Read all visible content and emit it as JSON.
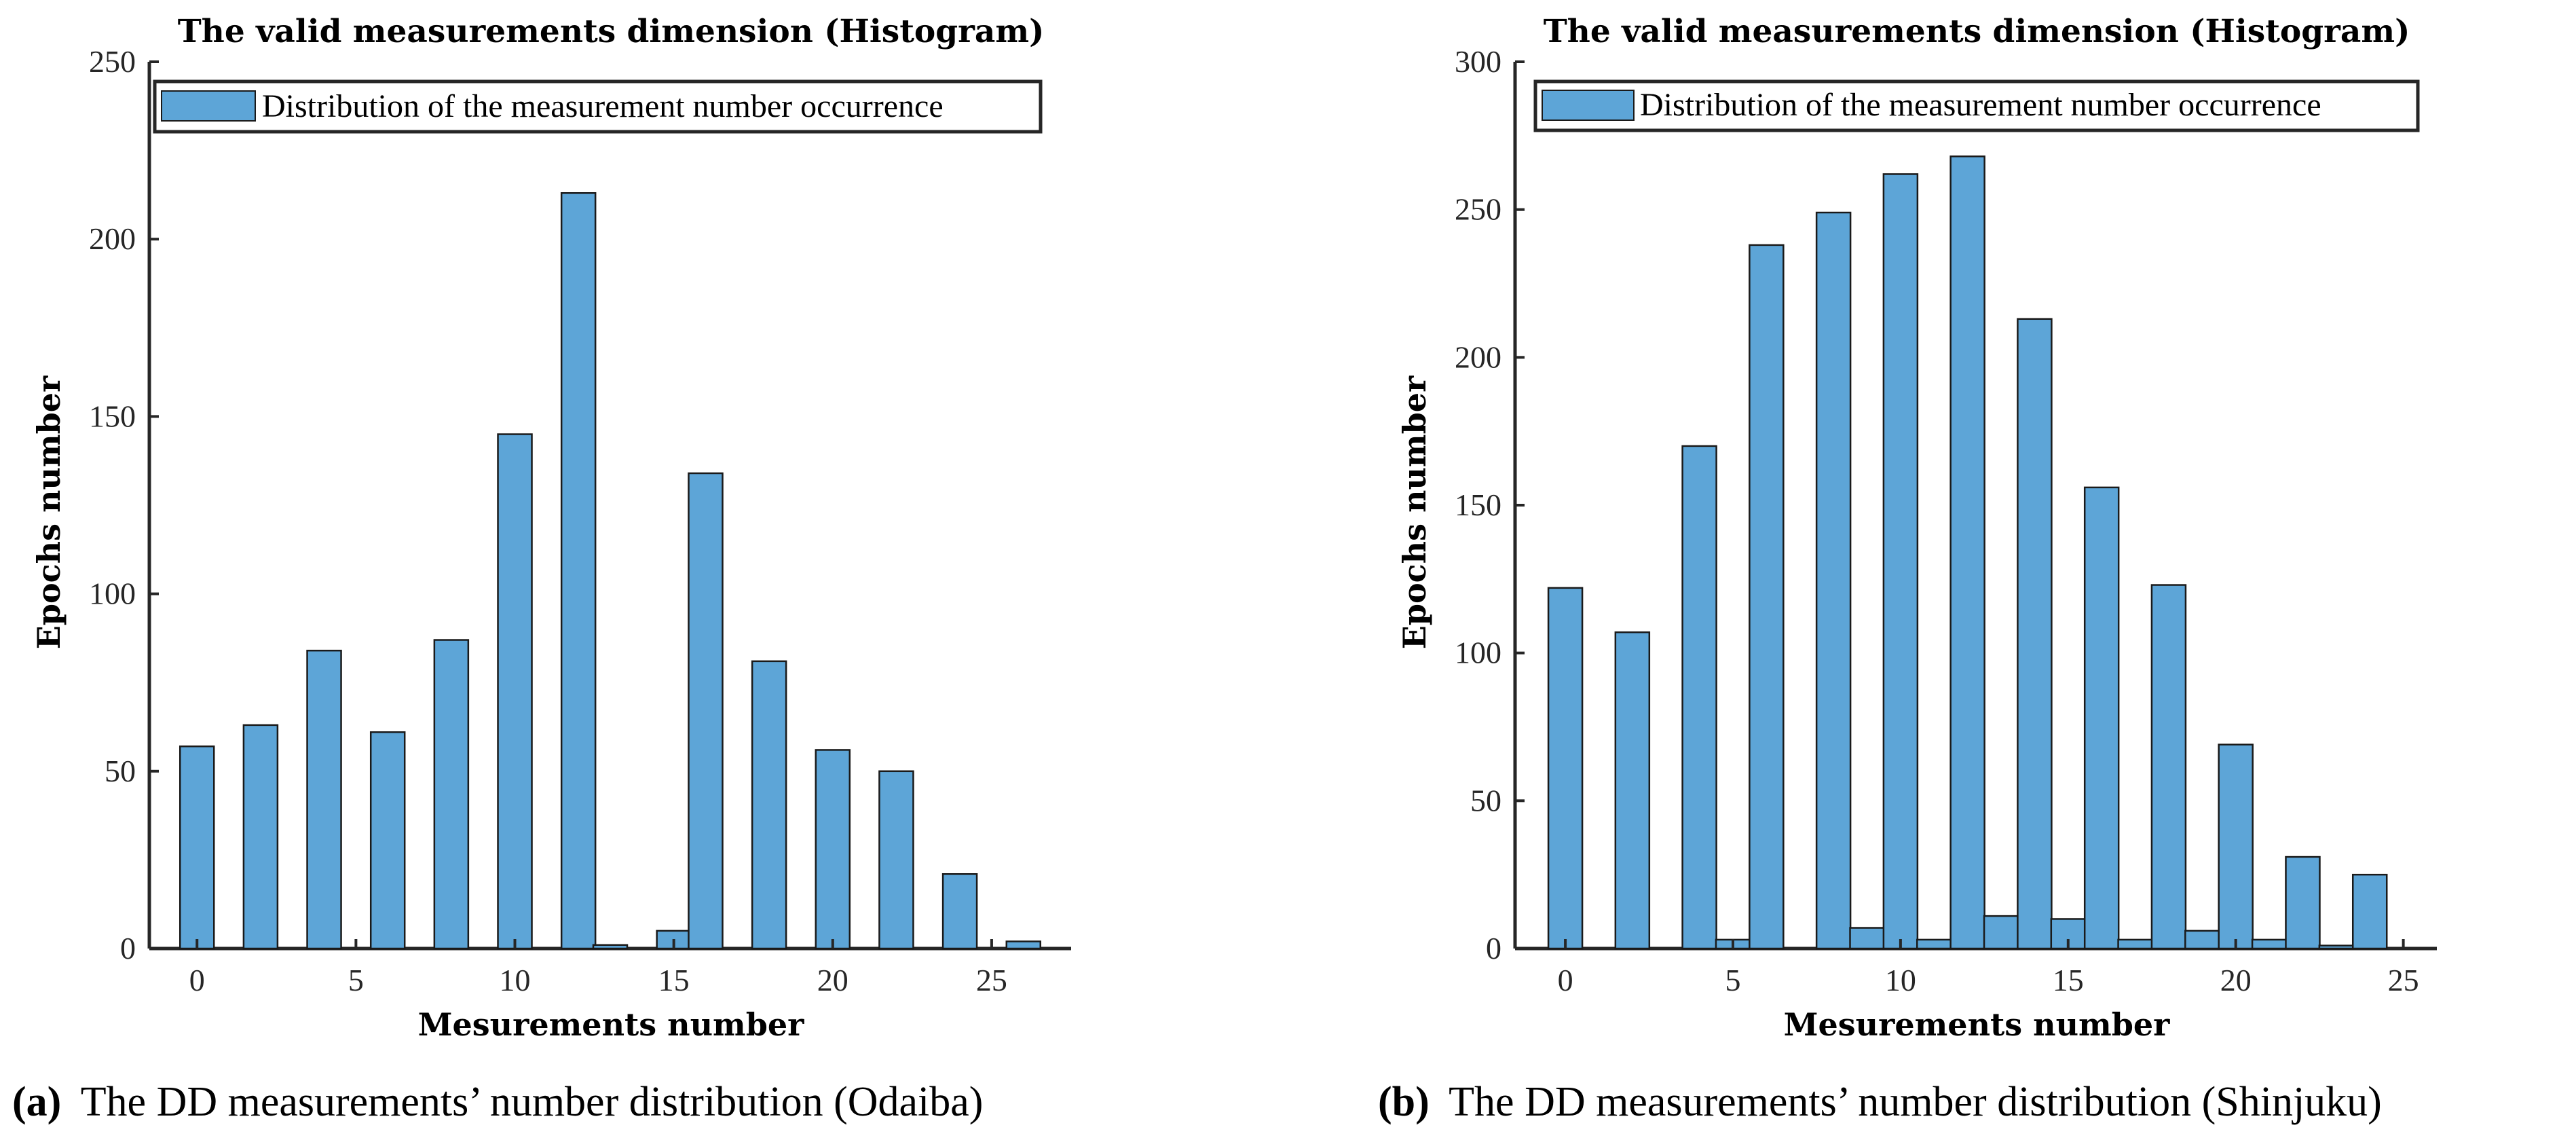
{
  "chart_data": [
    {
      "type": "bar",
      "title": "The valid measurements dimension (Histogram)",
      "xlabel": "Mesurements number",
      "ylabel": "Epochs number",
      "xlim": [
        -1.5,
        27.5
      ],
      "ylim": [
        0,
        250
      ],
      "xticks": [
        0,
        5,
        10,
        15,
        20,
        25
      ],
      "yticks": [
        0,
        50,
        100,
        150,
        200,
        250
      ],
      "legend": "Distribution of the measurement number occurrence",
      "legend_position": "top-left",
      "bar_color": "#5da5d7",
      "x": [
        0,
        2,
        4,
        6,
        8,
        10,
        12,
        13,
        15,
        16,
        18,
        20,
        22,
        24,
        26
      ],
      "values": [
        57,
        63,
        84,
        61,
        87,
        145,
        213,
        1,
        5,
        134,
        81,
        56,
        50,
        21,
        2
      ],
      "caption_letter": "(a)",
      "caption": "The DD measurements’ number distribution (Odaiba)"
    },
    {
      "type": "bar",
      "title": "The valid measurements dimension (Histogram)",
      "xlabel": "Mesurements number",
      "ylabel": "Epochs number",
      "xlim": [
        -1.5,
        26
      ],
      "ylim": [
        0,
        300
      ],
      "xticks": [
        0,
        5,
        10,
        15,
        20,
        25
      ],
      "yticks": [
        0,
        50,
        100,
        150,
        200,
        250,
        300
      ],
      "legend": "Distribution of the measurement number occurrence",
      "legend_position": "top-left",
      "bar_color": "#5da5d7",
      "x": [
        0,
        2,
        4,
        5,
        6,
        8,
        9,
        10,
        11,
        12,
        13,
        14,
        15,
        16,
        17,
        18,
        19,
        20,
        21,
        22,
        23,
        24
      ],
      "values": [
        122,
        107,
        170,
        3,
        238,
        249,
        7,
        262,
        3,
        268,
        11,
        213,
        10,
        156,
        3,
        123,
        6,
        69,
        3,
        31,
        1,
        25
      ],
      "caption_letter": "(b)",
      "caption": "The DD measurements’ number distribution (Shinjuku)"
    }
  ]
}
